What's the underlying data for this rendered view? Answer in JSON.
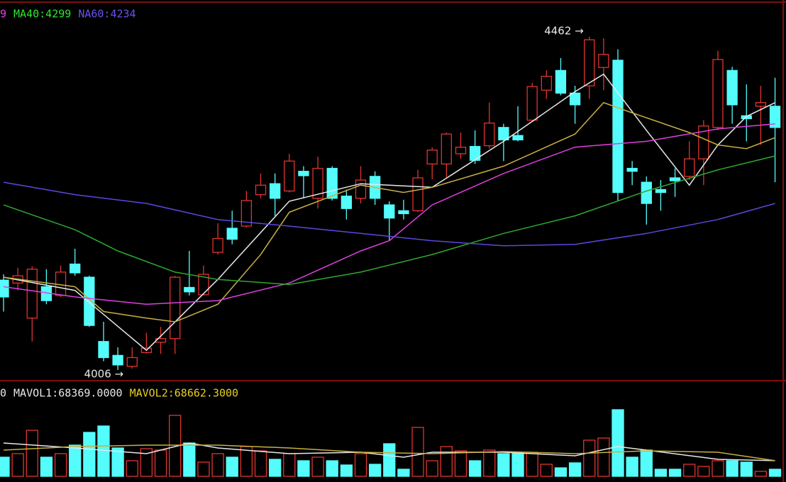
{
  "chart_data": [
    {
      "type": "candlestick",
      "up_color": "#e0342e",
      "down_color": "#54fcfc",
      "legend": [
        {
          "text": "9",
          "color": "#e040e0"
        },
        {
          "text": "MA40:4299",
          "color": "#2ee82e"
        },
        {
          "text": "NA60:4234",
          "color": "#6a52f0"
        }
      ],
      "max_label": "4462 →",
      "min_label": "4006 →",
      "open": [
        4129,
        4125,
        4077,
        4120,
        4108,
        4151,
        4133,
        4045,
        4026,
        4011,
        4030,
        4044,
        4049,
        4119,
        4109,
        4167,
        4200,
        4203,
        4246,
        4261,
        4251,
        4278,
        4241,
        4282,
        4244,
        4241,
        4271,
        4232,
        4224,
        4224,
        4288,
        4288,
        4302,
        4312,
        4313,
        4338,
        4327,
        4348,
        4389,
        4416,
        4385,
        4395,
        4420,
        4430,
        4282,
        4263,
        4253,
        4269,
        4271,
        4295,
        4338,
        4416,
        4354,
        4367,
        4367
      ],
      "high": [
        4137,
        4146,
        4148,
        4144,
        4149,
        4172,
        4135,
        4072,
        4037,
        4037,
        4057,
        4065,
        4135,
        4169,
        4149,
        4207,
        4224,
        4251,
        4275,
        4275,
        4302,
        4285,
        4298,
        4285,
        4253,
        4285,
        4278,
        4237,
        4239,
        4280,
        4311,
        4331,
        4331,
        4334,
        4372,
        4343,
        4367,
        4399,
        4416,
        4433,
        4395,
        4462,
        4460,
        4445,
        4292,
        4271,
        4266,
        4282,
        4319,
        4348,
        4443,
        4421,
        4397,
        4395,
        4406
      ],
      "low": [
        4086,
        4115,
        4045,
        4096,
        4106,
        4135,
        4065,
        4018,
        4006,
        4008,
        4028,
        4028,
        4028,
        4108,
        4108,
        4164,
        4178,
        4201,
        4241,
        4217,
        4249,
        4241,
        4227,
        4238,
        4212,
        4234,
        4232,
        4183,
        4212,
        4222,
        4267,
        4270,
        4295,
        4288,
        4309,
        4292,
        4319,
        4346,
        4377,
        4382,
        4343,
        4377,
        4389,
        4237,
        4259,
        4205,
        4224,
        4243,
        4266,
        4259,
        4334,
        4343,
        4319,
        4314,
        4263
      ],
      "close": [
        4106,
        4135,
        4144,
        4101,
        4140,
        4139,
        4067,
        4023,
        4013,
        4023,
        4036,
        4049,
        4133,
        4113,
        4137,
        4186,
        4185,
        4238,
        4259,
        4241,
        4292,
        4272,
        4282,
        4241,
        4227,
        4266,
        4241,
        4214,
        4220,
        4269,
        4307,
        4329,
        4311,
        4293,
        4344,
        4321,
        4321,
        4394,
        4408,
        4385,
        4369,
        4458,
        4438,
        4249,
        4278,
        4234,
        4249,
        4265,
        4295,
        4340,
        4431,
        4369,
        4350,
        4372,
        4338
      ],
      "lines": [
        {
          "color": "#e8e8e8",
          "x": [
            0,
            5,
            10,
            15,
            20,
            25,
            30,
            35,
            40,
            42,
            45,
            48,
            50,
            52,
            54
          ],
          "values": [
            4133,
            4115,
            4033,
            4130,
            4237,
            4261,
            4256,
            4319,
            4387,
            4411,
            4334,
            4259,
            4314,
            4353,
            4372
          ]
        },
        {
          "color": "#c8b040",
          "x": [
            0,
            5,
            7,
            10,
            12,
            15,
            18,
            20,
            25,
            28,
            30,
            35,
            40,
            42,
            44,
            48,
            50,
            52,
            54
          ],
          "values": [
            4133,
            4120,
            4086,
            4077,
            4072,
            4096,
            4164,
            4222,
            4259,
            4249,
            4256,
            4285,
            4329,
            4372,
            4358,
            4331,
            4314,
            4309,
            4324
          ]
        },
        {
          "color": "#e040e0",
          "x": [
            0,
            5,
            10,
            15,
            20,
            25,
            27,
            30,
            35,
            40,
            45,
            50,
            54
          ],
          "values": [
            4120,
            4106,
            4096,
            4101,
            4125,
            4169,
            4183,
            4232,
            4275,
            4311,
            4319,
            4336,
            4343
          ]
        },
        {
          "color": "#2ea82e",
          "x": [
            0,
            5,
            8,
            12,
            15,
            20,
            25,
            30,
            35,
            40,
            45,
            50,
            54
          ],
          "values": [
            4232,
            4198,
            4169,
            4140,
            4130,
            4123,
            4140,
            4164,
            4193,
            4217,
            4251,
            4280,
            4299
          ]
        },
        {
          "color": "#5a48e0",
          "x": [
            0,
            5,
            10,
            15,
            20,
            25,
            30,
            35,
            40,
            45,
            50,
            54
          ],
          "values": [
            4263,
            4246,
            4234,
            4212,
            4203,
            4193,
            4183,
            4176,
            4178,
            4193,
            4212,
            4234
          ]
        }
      ]
    },
    {
      "type": "bar",
      "legend": [
        {
          "text": "0",
          "color": "#e8e8e8"
        },
        {
          "text": "MAVOL1:68369.0000",
          "color": "#e8e8e8"
        },
        {
          "text": "MAVOL2:68662.3000",
          "color": "#e8d020"
        }
      ],
      "values": [
        83700,
        99200,
        201500,
        83700,
        99200,
        136400,
        192200,
        220100,
        124000,
        68200,
        120900,
        114700,
        266600,
        145700,
        62000,
        99200,
        83700,
        130200,
        111600,
        74400,
        99200,
        68200,
        83700,
        68200,
        49600,
        99200,
        52700,
        142600,
        31000,
        213900,
        68200,
        130200,
        111600,
        68200,
        114700,
        99200,
        99200,
        105400,
        52700,
        37200,
        58900,
        158100,
        167400,
        291400,
        83700,
        114700,
        31000,
        31000,
        52700,
        43400,
        68200,
        68200,
        62000,
        21700,
        31000
      ],
      "lines": [
        {
          "color": "#e8e8e8",
          "x": [
            0,
            5,
            10,
            13,
            15,
            20,
            25,
            28,
            30,
            35,
            40,
            43,
            45,
            50,
            54
          ],
          "values": [
            145700,
            124000,
            99200,
            145700,
            124000,
            99200,
            105400,
            83700,
            105400,
            105400,
            89900,
            130200,
            114700,
            74400,
            68369
          ]
        },
        {
          "color": "#c8b040",
          "x": [
            0,
            5,
            10,
            15,
            20,
            25,
            30,
            35,
            40,
            45,
            50,
            54
          ],
          "values": [
            114700,
            130200,
            136400,
            136400,
            124000,
            105400,
            99200,
            108500,
            99200,
            111600,
            105400,
            68662.3
          ]
        }
      ]
    }
  ]
}
